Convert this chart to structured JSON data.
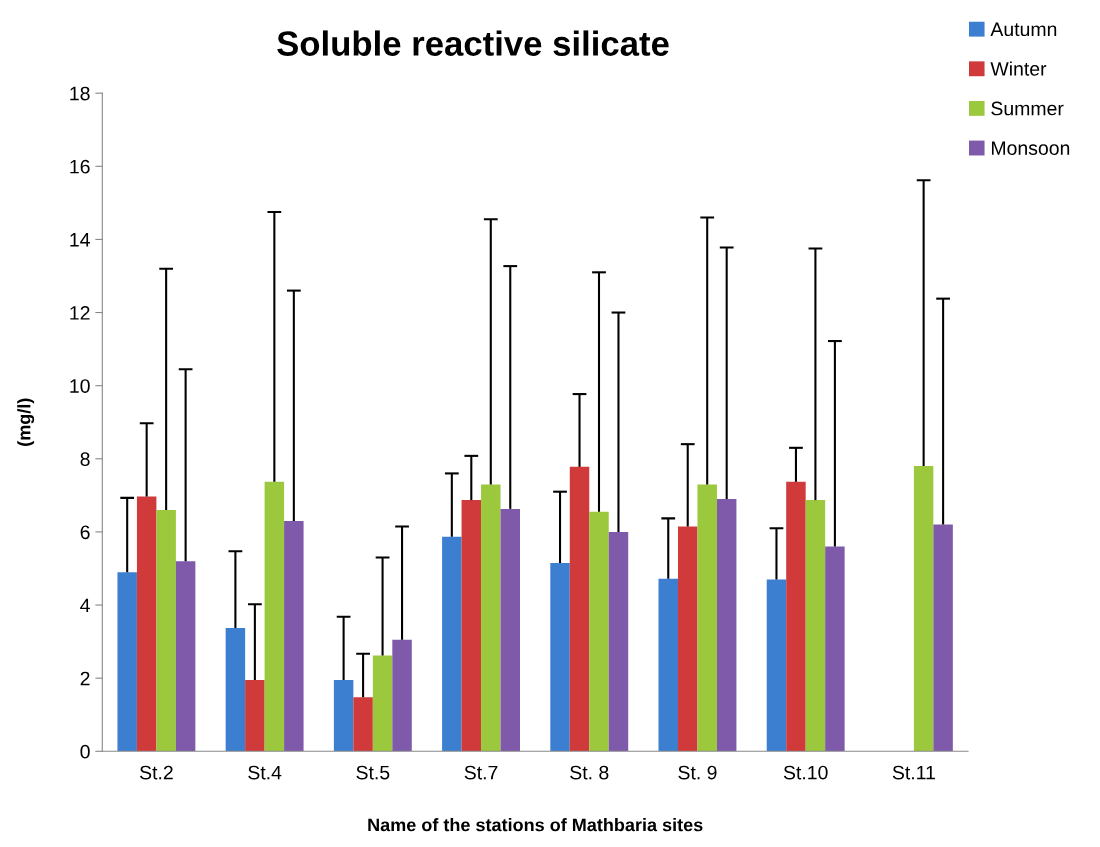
{
  "chart_data": {
    "type": "bar",
    "title": "Soluble reactive silicate",
    "xlabel": "Name of the stations of Mathbaria sites",
    "ylabel": "(mg/l)",
    "categories": [
      "St.2",
      "St.4",
      "St.5",
      "St.7",
      "St. 8",
      "St. 9",
      "St.10",
      "St.11"
    ],
    "series": [
      {
        "name": "Autumn",
        "color": "#3c7fd0",
        "values": [
          4.9,
          3.37,
          1.95,
          5.87,
          5.15,
          4.72,
          4.7,
          0
        ],
        "errors": [
          [
            4.9,
            6.93
          ],
          [
            3.37,
            5.47
          ],
          [
            1.95,
            3.68
          ],
          [
            5.87,
            7.6
          ],
          [
            5.15,
            7.1
          ],
          [
            4.72,
            6.37
          ],
          [
            4.7,
            6.1
          ],
          null
        ]
      },
      {
        "name": "Winter",
        "color": "#d03a3a",
        "values": [
          6.97,
          1.95,
          1.48,
          6.87,
          7.78,
          6.15,
          7.37,
          0
        ],
        "errors": [
          [
            6.97,
            8.97
          ],
          [
            1.95,
            4.02
          ],
          [
            1.48,
            2.67
          ],
          [
            6.87,
            8.08
          ],
          [
            7.78,
            9.77
          ],
          [
            6.15,
            8.4
          ],
          [
            7.37,
            8.3
          ],
          null
        ]
      },
      {
        "name": "Summer",
        "color": "#9bc83c",
        "values": [
          6.6,
          7.37,
          2.62,
          7.3,
          6.55,
          7.3,
          6.87,
          7.8
        ],
        "errors": [
          [
            6.6,
            13.2
          ],
          [
            7.37,
            14.75
          ],
          [
            2.62,
            5.3
          ],
          [
            7.3,
            14.55
          ],
          [
            6.55,
            13.1
          ],
          [
            7.3,
            14.6
          ],
          [
            6.87,
            13.75
          ],
          [
            7.8,
            15.62
          ]
        ]
      },
      {
        "name": "Monsoon",
        "color": "#7f5aab",
        "values": [
          5.2,
          6.3,
          3.05,
          6.63,
          6.0,
          6.9,
          5.6,
          6.2
        ],
        "errors": [
          [
            5.2,
            10.45
          ],
          [
            6.3,
            12.6
          ],
          [
            3.05,
            6.15
          ],
          [
            6.63,
            13.27
          ],
          [
            6.0,
            12.0
          ],
          [
            6.9,
            13.78
          ],
          [
            5.6,
            11.22
          ],
          [
            6.2,
            12.38
          ]
        ]
      }
    ],
    "ylim": [
      0,
      18
    ],
    "yticks": [
      0,
      2,
      4,
      6,
      8,
      10,
      12,
      14,
      16,
      18
    ],
    "grid": false,
    "legend": "top right"
  }
}
